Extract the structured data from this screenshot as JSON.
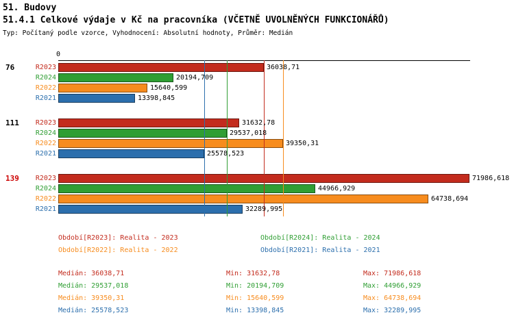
{
  "header": {
    "title": "51. Budovy",
    "subtitle": "51.4.1 Celkové výdaje v Kč na pracovníka (VČETNĚ UVOLNĚNÝCH FUNKCIONÁŘŮ)",
    "meta": "Typ: Počítaný podle vzorce, Vyhodnocení: Absolutní hodnoty, Průměr: Medián"
  },
  "chart_data": {
    "type": "bar",
    "orientation": "horizontal",
    "axis_origin_label": "0",
    "xlim": [
      0,
      71986.618
    ],
    "grid": false,
    "legend_position": "bottom",
    "groups": [
      {
        "label": "76",
        "color": "#000000"
      },
      {
        "label": "111",
        "color": "#000000"
      },
      {
        "label": "139",
        "color": "#cc0000"
      }
    ],
    "series": [
      {
        "name": "R2023",
        "color": "#c32b1d",
        "values": [
          36038.71,
          31632.78,
          71986.618
        ],
        "value_labels": [
          "36038,71",
          "31632,78",
          "71986,618"
        ],
        "median": 36038.71
      },
      {
        "name": "R2024",
        "color": "#2f9e33",
        "values": [
          20194.709,
          29537.018,
          44966.929
        ],
        "value_labels": [
          "20194,709",
          "29537,018",
          "44966,929"
        ],
        "median": 29537.018
      },
      {
        "name": "R2022",
        "color": "#f78c1e",
        "values": [
          15640.599,
          39350.31,
          64738.694
        ],
        "value_labels": [
          "15640,599",
          "39350,31",
          "64738,694"
        ],
        "median": 39350.31
      },
      {
        "name": "R2021",
        "color": "#2c6fad",
        "values": [
          13398.845,
          25578.523,
          32289.995
        ],
        "value_labels": [
          "13398,845",
          "25578,523",
          "32289,995"
        ],
        "median": 25578.523
      }
    ]
  },
  "legend": [
    {
      "series": "R2023",
      "label": "Období[R2023]: Realita - 2023",
      "row": 0,
      "col": 0
    },
    {
      "series": "R2024",
      "label": "Období[R2024]: Realita - 2024",
      "row": 0,
      "col": 1
    },
    {
      "series": "R2022",
      "label": "Období[R2022]: Realita - 2022",
      "row": 1,
      "col": 0
    },
    {
      "series": "R2021",
      "label": "Období[R2021]: Realita - 2021",
      "row": 1,
      "col": 1
    }
  ],
  "stats": [
    {
      "series": "R2023",
      "median": "Medián: 36038,71",
      "min": "Min: 31632,78",
      "max": "Max: 71986,618"
    },
    {
      "series": "R2024",
      "median": "Medián: 29537,018",
      "min": "Min: 20194,709",
      "max": "Max: 44966,929"
    },
    {
      "series": "R2022",
      "median": "Medián: 39350,31",
      "min": "Min: 15640,599",
      "max": "Max: 64738,694"
    },
    {
      "series": "R2021",
      "median": "Medián: 25578,523",
      "min": "Min: 13398,845",
      "max": "Max: 32289,995"
    }
  ]
}
